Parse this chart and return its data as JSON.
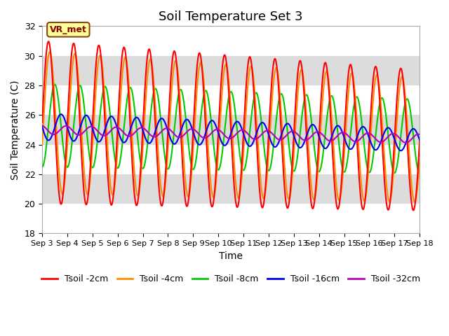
{
  "title": "Soil Temperature Set 3",
  "xlabel": "Time",
  "ylabel": "Soil Temperature (C)",
  "ylim": [
    18,
    32
  ],
  "xlim": [
    0,
    15
  ],
  "xtick_labels": [
    "Sep 3",
    "Sep 4",
    "Sep 5",
    "Sep 6",
    "Sep 7",
    "Sep 8",
    "Sep 9",
    "Sep 10",
    "Sep 11",
    "Sep 12",
    "Sep 13",
    "Sep 14",
    "Sep 15",
    "Sep 16",
    "Sep 17",
    "Sep 18"
  ],
  "ytick_labels": [
    "18",
    "20",
    "22",
    "24",
    "26",
    "28",
    "30",
    "32"
  ],
  "ytick_values": [
    18,
    20,
    22,
    24,
    26,
    28,
    30,
    32
  ],
  "annotation": "VR_met",
  "lines": {
    "Tsoil -2cm": {
      "color": "#FF0000",
      "lw": 1.5
    },
    "Tsoil -4cm": {
      "color": "#FF8C00",
      "lw": 1.5
    },
    "Tsoil -8cm": {
      "color": "#00CC00",
      "lw": 1.5
    },
    "Tsoil -16cm": {
      "color": "#0000EE",
      "lw": 1.5
    },
    "Tsoil -32cm": {
      "color": "#BB00BB",
      "lw": 1.5
    }
  },
  "background_color": "#FFFFFF",
  "band_gray": "#DCDCDC",
  "band_white": "#FFFFFF",
  "title_fontsize": 13,
  "label_fontsize": 10,
  "tick_fontsize": 8
}
